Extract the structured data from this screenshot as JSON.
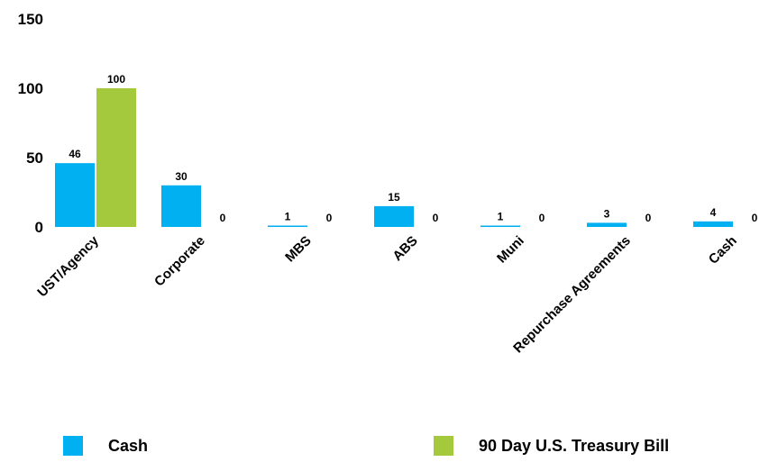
{
  "chart_data": {
    "type": "bar",
    "categories": [
      "UST/Agency",
      "Corporate",
      "MBS",
      "ABS",
      "Muni",
      "Repurchase Agreements",
      "Cash"
    ],
    "series": [
      {
        "name": "Cash",
        "values": [
          46,
          30,
          1,
          15,
          1,
          3,
          4
        ],
        "color": "#00b0f0"
      },
      {
        "name": "90 Day U.S. Treasury Bill",
        "values": [
          100,
          0,
          0,
          0,
          0,
          0,
          0
        ],
        "color": "#a5c93c"
      }
    ],
    "yticks": [
      0,
      50,
      100,
      150
    ],
    "ylim": [
      0,
      150
    ],
    "grid": false,
    "legend_position": "bottom"
  }
}
